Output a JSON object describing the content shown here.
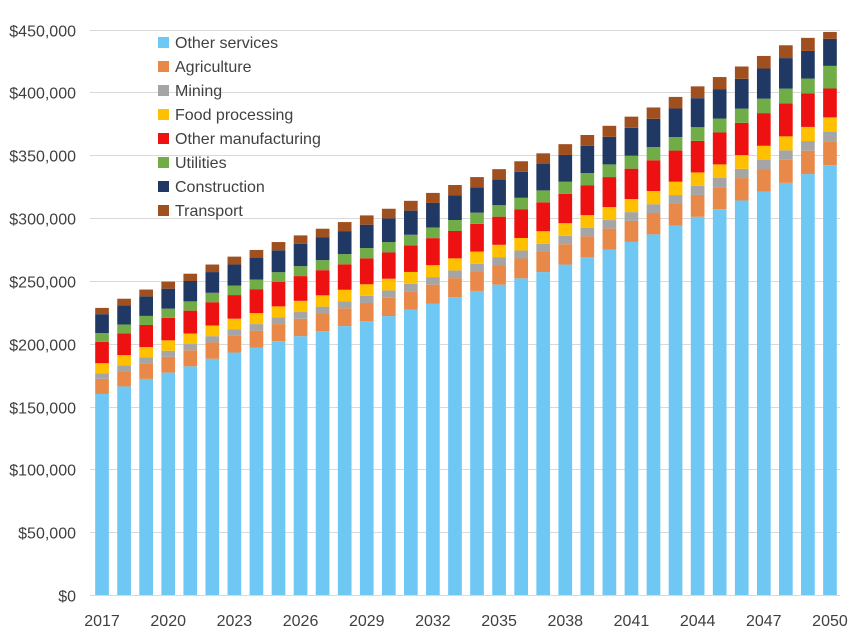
{
  "chart_data": {
    "type": "bar",
    "stacked": true,
    "title": "",
    "xlabel": "",
    "ylabel": "",
    "ylim": [
      0,
      460000
    ],
    "yticks": [
      "$0",
      "$50,000",
      "$100,000",
      "$150,000",
      "$200,000",
      "$250,000",
      "$300,000",
      "$350,000",
      "$400,000",
      "$450,000"
    ],
    "ytick_values": [
      0,
      50000,
      100000,
      150000,
      200000,
      250000,
      300000,
      350000,
      400000,
      450000
    ],
    "categories": [
      "2017",
      "2018",
      "2019",
      "2020",
      "2021",
      "2022",
      "2023",
      "2024",
      "2025",
      "2026",
      "2027",
      "2028",
      "2029",
      "2030",
      "2031",
      "2032",
      "2033",
      "2034",
      "2035",
      "2036",
      "2037",
      "2038",
      "2039",
      "2040",
      "2041",
      "2042",
      "2043",
      "2044",
      "2045",
      "2046",
      "2047",
      "2048",
      "2049",
      "2050"
    ],
    "xtick_labels": [
      "2017",
      "2020",
      "2023",
      "2026",
      "2029",
      "2032",
      "2035",
      "2038",
      "2041",
      "2044",
      "2047",
      "2050"
    ],
    "grid": true,
    "legend_placement": "top-left",
    "series": [
      {
        "name": "Other services",
        "color": "#6FC7F3",
        "values": [
          160000,
          166000,
          172000,
          177000,
          182000,
          188000,
          193000,
          197000,
          202000,
          206000,
          210000,
          214000,
          218000,
          222000,
          227000,
          232000,
          237000,
          242000,
          247000,
          252000,
          257000,
          263000,
          269000,
          275000,
          281000,
          287000,
          294000,
          301000,
          307000,
          314000,
          321000,
          328000,
          335000,
          342000
        ]
      },
      {
        "name": "Agriculture",
        "color": "#E8894A",
        "values": [
          12000,
          12200,
          12400,
          12600,
          12800,
          13000,
          13200,
          13400,
          13600,
          13800,
          14000,
          14200,
          14400,
          14600,
          14800,
          15000,
          15200,
          15400,
          15600,
          15800,
          16000,
          16200,
          16400,
          16600,
          16800,
          17000,
          17200,
          17400,
          17600,
          17800,
          18000,
          18300,
          18600,
          19000
        ]
      },
      {
        "name": "Mining",
        "color": "#A5A5A5",
        "values": [
          4500,
          4600,
          4700,
          4800,
          4900,
          5000,
          5100,
          5200,
          5300,
          5400,
          5500,
          5600,
          5700,
          5800,
          5900,
          6000,
          6100,
          6200,
          6300,
          6400,
          6500,
          6600,
          6700,
          6800,
          6900,
          7000,
          7100,
          7200,
          7300,
          7400,
          7500,
          7600,
          7700,
          7800
        ]
      },
      {
        "name": "Food processing",
        "color": "#FFC000",
        "values": [
          8000,
          8100,
          8200,
          8300,
          8400,
          8500,
          8600,
          8700,
          8800,
          8900,
          9000,
          9100,
          9200,
          9300,
          9400,
          9500,
          9600,
          9700,
          9800,
          9900,
          10000,
          10100,
          10200,
          10300,
          10400,
          10500,
          10600,
          10700,
          10800,
          10900,
          11000,
          11100,
          11200,
          11300
        ]
      },
      {
        "name": "Other manufacturing",
        "color": "#EE1111",
        "values": [
          17000,
          17300,
          17600,
          17900,
          18200,
          18500,
          18800,
          19100,
          19400,
          19700,
          20000,
          20300,
          20600,
          20900,
          21200,
          21500,
          21800,
          22100,
          22400,
          22700,
          23000,
          23300,
          23600,
          23900,
          24200,
          24500,
          24800,
          25100,
          25400,
          25700,
          26000,
          26300,
          26600,
          23000
        ]
      },
      {
        "name": "Utilities",
        "color": "#70AD47",
        "values": [
          7000,
          7100,
          7200,
          7300,
          7400,
          7500,
          7600,
          7700,
          7800,
          7900,
          8000,
          8100,
          8200,
          8300,
          8400,
          8500,
          8700,
          8900,
          9100,
          9300,
          9500,
          9700,
          9900,
          10100,
          10300,
          10500,
          10700,
          10900,
          11100,
          11300,
          11500,
          11700,
          11900,
          18000
        ]
      },
      {
        "name": "Construction",
        "color": "#203864",
        "values": [
          15000,
          15300,
          15600,
          15900,
          16200,
          16500,
          16800,
          17100,
          17400,
          17700,
          18000,
          18300,
          18600,
          18900,
          19200,
          19500,
          19800,
          20100,
          20400,
          20700,
          21000,
          21300,
          21600,
          21900,
          22200,
          22500,
          22800,
          23100,
          23400,
          23700,
          24000,
          24300,
          22000,
          21500
        ]
      },
      {
        "name": "Transport",
        "color": "#A0501E",
        "values": [
          5000,
          5200,
          5400,
          5600,
          5800,
          6000,
          6200,
          6400,
          6600,
          6800,
          7000,
          7200,
          7400,
          7600,
          7800,
          8000,
          8100,
          8200,
          8300,
          8400,
          8500,
          8600,
          8700,
          8800,
          8900,
          9000,
          9200,
          9400,
          9600,
          9800,
          10000,
          10200,
          10400,
          5500
        ]
      }
    ]
  }
}
